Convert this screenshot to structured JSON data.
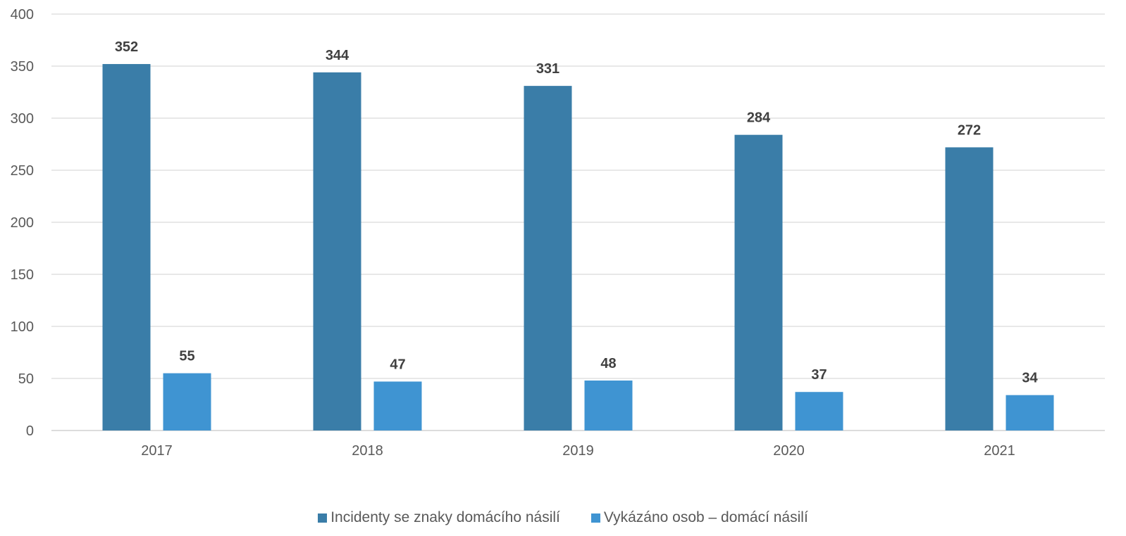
{
  "chart_data": {
    "type": "bar",
    "categories": [
      "2017",
      "2018",
      "2019",
      "2020",
      "2021"
    ],
    "series": [
      {
        "name": "Incidenty se znaky domácího násilí",
        "values": [
          352,
          344,
          331,
          284,
          272
        ],
        "color": "#3A7DA8"
      },
      {
        "name": "Vykázáno osob – domácí násilí",
        "values": [
          55,
          47,
          48,
          37,
          34
        ],
        "color": "#3F94D2"
      }
    ],
    "ylim": [
      0,
      400
    ],
    "yticks": [
      0,
      50,
      100,
      150,
      200,
      250,
      300,
      350,
      400
    ],
    "grid": true,
    "legend_position": "bottom",
    "data_labels": true
  }
}
